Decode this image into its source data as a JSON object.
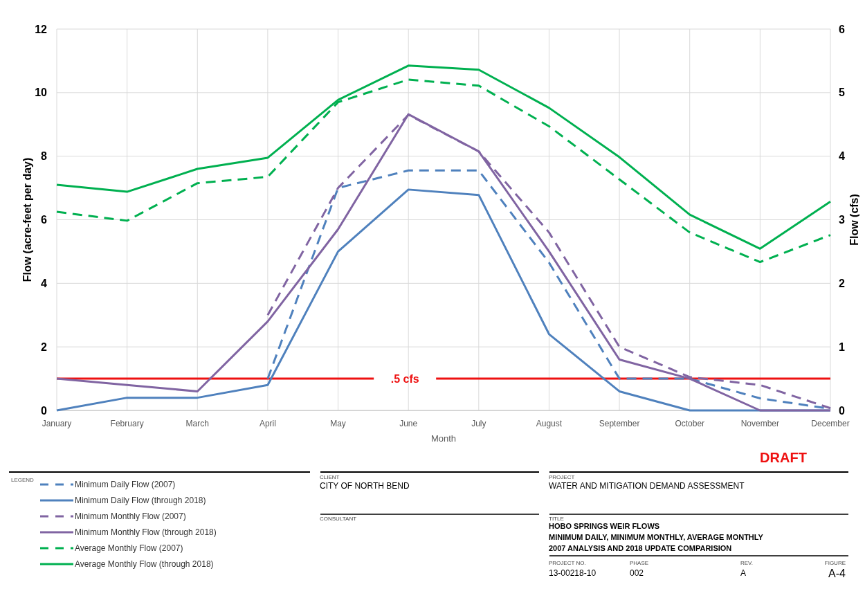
{
  "chart_data": {
    "type": "line",
    "title": "HOBO SPRINGS WEIR FLOWS",
    "subtitle": "MINIMUM DAILY, MINIMUM MONTHLY, AVERAGE MONTHLY",
    "xlabel": "Month",
    "ylabel": "Flow (acre-feet per day)",
    "y2label": "Flow (cfs)",
    "legend_title": "LEGEND",
    "categories": [
      "January",
      "February",
      "March",
      "April",
      "May",
      "June",
      "July",
      "August",
      "September",
      "October",
      "November",
      "December"
    ],
    "series": [
      {
        "name": "Minimum Daily Flow (2007)",
        "color": "#4f81bd",
        "line_style": "dashed",
        "values": [
          null,
          null,
          null,
          1.0,
          7.0,
          7.55,
          7.55,
          4.65,
          1.0,
          1.0,
          0.38,
          0.05
        ]
      },
      {
        "name": "Minimum Daily Flow (through 2018)",
        "color": "#4f81bd",
        "line_style": "solid",
        "values": [
          0,
          0.4,
          0.4,
          0.8,
          5.0,
          6.95,
          6.78,
          2.4,
          0.6,
          0,
          0,
          0
        ]
      },
      {
        "name": "Minimum Monthly Flow (2007)",
        "color": "#8064a2",
        "line_style": "dashed",
        "values": [
          null,
          null,
          null,
          3.0,
          7.0,
          9.3,
          8.15,
          5.6,
          2.0,
          1.05,
          0.8,
          0.07
        ]
      },
      {
        "name": "Minimum Monthly Flow (through 2018)",
        "color": "#8064a2",
        "line_style": "solid",
        "values": [
          1.0,
          0.8,
          0.6,
          2.8,
          5.7,
          9.32,
          8.15,
          5.0,
          1.6,
          1.0,
          0,
          0
        ]
      },
      {
        "name": "Average Monthly Flow (2007)",
        "color": "#00b050",
        "line_style": "dashed",
        "values": [
          6.25,
          5.97,
          7.15,
          7.35,
          9.7,
          10.41,
          10.22,
          8.94,
          7.27,
          5.6,
          4.67,
          5.52
        ]
      },
      {
        "name": "Average Monthly Flow (through 2018)",
        "color": "#00b050",
        "line_style": "solid",
        "values": [
          7.1,
          6.88,
          7.6,
          7.95,
          9.77,
          10.85,
          10.72,
          9.52,
          7.97,
          6.16,
          5.09,
          6.57
        ]
      }
    ],
    "ylim": [
      0,
      12
    ],
    "yticks": [
      0,
      2,
      4,
      6,
      8,
      10,
      12
    ],
    "y2lim": [
      0,
      6
    ],
    "y2ticks": [
      0,
      1,
      2,
      3,
      4,
      5,
      6
    ],
    "ref_lines": [
      {
        "axis": "y2",
        "value": 0.5,
        "label": ".5 cfs",
        "color": "#ee1111",
        "line_style": "solid"
      }
    ],
    "grid": true,
    "legend": "bottom left",
    "annotations": [
      "DRAFT",
      "CLIENT",
      "CITY OF NORTH BEND",
      "CONSULTANT",
      "PROJECT",
      "WATER AND MITIGATION DEMAND ASSESSMENT",
      "TITLE",
      "2007 ANALYSIS AND 2018 UPDATE COMPARISION",
      "PROJECT NO.",
      "13-00218-10",
      "PHASE",
      "002",
      "REV.",
      "A",
      "FIGURE",
      "A-4"
    ]
  }
}
